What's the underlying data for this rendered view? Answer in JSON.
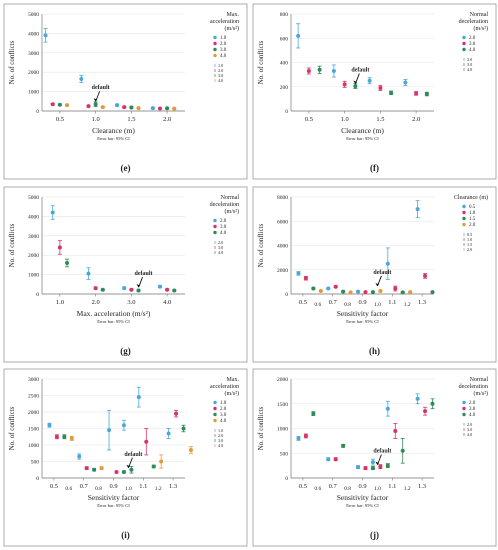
{
  "chart_data": [
    {
      "type": "scatter",
      "panel_label": "(e)",
      "xlabel": "Clearance (m)",
      "ylabel": "No. of conflicts",
      "footnote": "Error bar: 95% CI",
      "xlim": [
        0.25,
        2.25
      ],
      "ylim": [
        0,
        5000
      ],
      "xticks": [
        "0.5",
        "1.0",
        "1.5",
        "2.0"
      ],
      "xtick_values": [
        0.5,
        1.0,
        1.5,
        2.0
      ],
      "yticks": [
        "0",
        "1000",
        "2000",
        "3000",
        "4000",
        "5000"
      ],
      "ytick_values": [
        0,
        1000,
        2000,
        3000,
        4000,
        5000
      ],
      "legend_title": "Max. acceleration (m/s²)",
      "legend_placement": "top-right",
      "annotation": {
        "text": "default",
        "x": 1.0,
        "y": 400
      },
      "series": [
        {
          "name": "1.0",
          "color": "#4aa8d8",
          "points": [
            [
              0.3,
              3900,
              350
            ],
            [
              0.8,
              1650,
              180
            ],
            [
              1.3,
              300,
              60
            ],
            [
              1.8,
              150,
              40
            ]
          ]
        },
        {
          "name": "2.0",
          "color": "#d6336c",
          "points": [
            [
              0.4,
              350,
              40
            ],
            [
              0.9,
              250,
              40
            ],
            [
              1.4,
              200,
              40
            ],
            [
              1.9,
              130,
              30
            ]
          ]
        },
        {
          "name": "3.0",
          "color": "#2e8b57",
          "points": [
            [
              0.5,
              320,
              40
            ],
            [
              1.0,
              350,
              120
            ],
            [
              1.5,
              180,
              40
            ],
            [
              2.0,
              140,
              30
            ]
          ]
        },
        {
          "name": "4.0",
          "color": "#e39b3a",
          "points": [
            [
              0.6,
              300,
              40
            ],
            [
              1.1,
              200,
              40
            ],
            [
              1.6,
              150,
              30
            ],
            [
              2.1,
              120,
              30
            ]
          ]
        }
      ]
    },
    {
      "type": "scatter",
      "panel_label": "(f)",
      "xlabel": "Clearance (m)",
      "ylabel": "No. of conflicts",
      "footnote": "Error bar: 95% CI",
      "xlim": [
        0.25,
        2.25
      ],
      "ylim": [
        0,
        800
      ],
      "xticks": [
        "0.5",
        "1.0",
        "1.5",
        "2.0"
      ],
      "xtick_values": [
        0.5,
        1.0,
        1.5,
        2.0
      ],
      "yticks": [
        "0",
        "200",
        "400",
        "600",
        "800"
      ],
      "ytick_values": [
        0,
        200,
        400,
        600,
        800
      ],
      "legend_title": "Normal deceleration (m/s²)",
      "legend_placement": "top-right",
      "annotation": {
        "text": "default",
        "x": 1.15,
        "y": 210
      },
      "series": [
        {
          "name": "2.0",
          "color": "#4aa8d8",
          "points": [
            [
              0.35,
              620,
              100
            ],
            [
              0.85,
              330,
              50
            ],
            [
              1.35,
              250,
              25
            ],
            [
              1.85,
              235,
              25
            ]
          ]
        },
        {
          "name": "3.0",
          "color": "#d6336c",
          "points": [
            [
              0.5,
              330,
              25
            ],
            [
              1.0,
              220,
              25
            ],
            [
              1.5,
              190,
              20
            ],
            [
              2.0,
              145,
              15
            ]
          ]
        },
        {
          "name": "4.0",
          "color": "#2e8b57",
          "points": [
            [
              0.65,
              340,
              30
            ],
            [
              1.15,
              205,
              20
            ],
            [
              1.65,
              150,
              15
            ],
            [
              2.15,
              140,
              15
            ]
          ]
        }
      ]
    },
    {
      "type": "scatter",
      "panel_label": "(g)",
      "xlabel": "Max. acceleration  (m/s²)",
      "ylabel": "No. of conflicts",
      "footnote": "Error bar: 95% CI",
      "xlim": [
        0.5,
        4.5
      ],
      "ylim": [
        0,
        5000
      ],
      "xticks": [
        "1.0",
        "2.0",
        "3.0",
        "4.0"
      ],
      "xtick_values": [
        1.0,
        2.0,
        3.0,
        4.0
      ],
      "yticks": [
        "0",
        "1000",
        "2000",
        "3000",
        "4000",
        "5000"
      ],
      "ytick_values": [
        0,
        1000,
        2000,
        3000,
        4000,
        5000
      ],
      "legend_title": "Normal deceleration (m/s²)",
      "legend_placement": "top-right",
      "annotation": {
        "text": "default",
        "x": 3.2,
        "y": 250
      },
      "series": [
        {
          "name": "2.0",
          "color": "#4aa8d8",
          "points": [
            [
              0.8,
              4200,
              350
            ],
            [
              1.8,
              1050,
              300
            ],
            [
              2.8,
              300,
              60
            ],
            [
              3.8,
              380,
              60
            ]
          ]
        },
        {
          "name": "3.0",
          "color": "#d6336c",
          "points": [
            [
              1.0,
              2400,
              350
            ],
            [
              2.0,
              300,
              60
            ],
            [
              3.0,
              220,
              40
            ],
            [
              4.0,
              220,
              40
            ]
          ]
        },
        {
          "name": "4.0",
          "color": "#2e8b57",
          "points": [
            [
              1.2,
              1600,
              200
            ],
            [
              2.2,
              220,
              40
            ],
            [
              3.2,
              180,
              40
            ],
            [
              4.2,
              180,
              40
            ]
          ]
        }
      ]
    },
    {
      "type": "scatter",
      "panel_label": "(h)",
      "xlabel": "Sensitivity factor",
      "ylabel": "No. of conflicts",
      "footnote": "Error bar: 95% CI",
      "xlim": [
        0.42,
        1.38
      ],
      "ylim": [
        0,
        8000
      ],
      "xticks": [
        "0.5",
        "0.7",
        "0.9",
        "1.1",
        "1.3"
      ],
      "xtick_values": [
        0.5,
        0.7,
        0.9,
        1.1,
        1.3
      ],
      "minor_xticks": [
        "0.6",
        "0.8",
        "1.0",
        "1.2"
      ],
      "minor_xtick_values": [
        0.6,
        0.8,
        1.0,
        1.2
      ],
      "yticks": [
        "0",
        "2000",
        "4000",
        "6000",
        "8000"
      ],
      "ytick_values": [
        0,
        2000,
        4000,
        6000,
        8000
      ],
      "legend_title": "Clearance (m)",
      "legend_placement": "top-right",
      "annotation": {
        "text": "default",
        "x": 1.0,
        "y": 500
      },
      "series": [
        {
          "name": "0.5",
          "color": "#4aa8d8",
          "points": [
            [
              0.47,
              1700,
              150
            ],
            [
              0.67,
              450,
              60
            ],
            [
              0.87,
              200,
              40
            ],
            [
              1.07,
              2500,
              1300
            ],
            [
              1.27,
              7000,
              700
            ]
          ]
        },
        {
          "name": "1.0",
          "color": "#d6336c",
          "points": [
            [
              0.52,
              1300,
              150
            ],
            [
              0.72,
              600,
              80
            ],
            [
              0.92,
              150,
              30
            ],
            [
              1.12,
              450,
              200
            ],
            [
              1.32,
              1500,
              200
            ]
          ]
        },
        {
          "name": "1.5",
          "color": "#2e8b57",
          "points": [
            [
              0.57,
              450,
              60
            ],
            [
              0.77,
              200,
              40
            ],
            [
              0.97,
              150,
              30
            ],
            [
              1.17,
              130,
              30
            ],
            [
              1.37,
              150,
              30
            ]
          ]
        },
        {
          "name": "2.0",
          "color": "#e39b3a",
          "points": [
            [
              0.62,
              250,
              40
            ],
            [
              0.82,
              130,
              30
            ],
            [
              1.02,
              250,
              80
            ],
            [
              1.22,
              150,
              30
            ]
          ]
        }
      ]
    },
    {
      "type": "scatter",
      "panel_label": "(i)",
      "xlabel": "Sensitivity factor",
      "ylabel": "No. of conflicts",
      "footnote": "Error bar: 95% CI",
      "xlim": [
        0.42,
        1.38
      ],
      "ylim": [
        0,
        3000
      ],
      "xticks": [
        "0.5",
        "0.7",
        "0.9",
        "1.1",
        "1.3"
      ],
      "xtick_values": [
        0.5,
        0.7,
        0.9,
        1.1,
        1.3
      ],
      "minor_xticks": [
        "0.6",
        "0.8",
        "1.0",
        "1.2"
      ],
      "minor_xtick_values": [
        0.6,
        0.8,
        1.0,
        1.2
      ],
      "yticks": [
        "0",
        "500",
        "1000",
        "1500",
        "2000",
        "2500",
        "3000"
      ],
      "ytick_values": [
        0,
        500,
        1000,
        1500,
        2000,
        2500,
        3000
      ],
      "legend_title": "Max. acceleration (m/s²)",
      "legend_placement": "top-right",
      "annotation": {
        "text": "default",
        "x": 1.0,
        "y": 250
      },
      "series": [
        {
          "name": "1.0",
          "color": "#4aa8d8",
          "points": [
            [
              0.47,
              1600,
              60
            ],
            [
              0.67,
              650,
              80
            ],
            [
              0.87,
              1450,
              600
            ],
            [
              0.97,
              1600,
              150
            ],
            [
              1.07,
              2450,
              300
            ],
            [
              1.27,
              1350,
              150
            ]
          ]
        },
        {
          "name": "2.0",
          "color": "#d6336c",
          "points": [
            [
              0.52,
              1250,
              60
            ],
            [
              0.72,
              300,
              40
            ],
            [
              0.92,
              180,
              30
            ],
            [
              1.12,
              1100,
              400
            ],
            [
              1.32,
              1950,
              100
            ]
          ]
        },
        {
          "name": "3.0",
          "color": "#2e8b57",
          "points": [
            [
              0.57,
              1250,
              60
            ],
            [
              0.77,
              250,
              40
            ],
            [
              0.97,
              180,
              30
            ],
            [
              1.02,
              250,
              100
            ],
            [
              1.17,
              350,
              40
            ],
            [
              1.37,
              1500,
              100
            ]
          ]
        },
        {
          "name": "4.0",
          "color": "#e39b3a",
          "points": [
            [
              0.62,
              1200,
              60
            ],
            [
              0.82,
              300,
              40
            ],
            [
              1.22,
              500,
              200
            ],
            [
              1.42,
              850,
              100
            ]
          ]
        }
      ]
    },
    {
      "type": "scatter",
      "panel_label": "(j)",
      "xlabel": "Sensitivity factor",
      "ylabel": "No. of conflicts",
      "footnote": "Error bar: 95% CI",
      "xlim": [
        0.42,
        1.38
      ],
      "ylim": [
        0,
        2000
      ],
      "xticks": [
        "0.5",
        "0.7",
        "0.9",
        "1.1",
        "1.3"
      ],
      "xtick_values": [
        0.5,
        0.7,
        0.9,
        1.1,
        1.3
      ],
      "minor_xticks": [
        "0.6",
        "0.8",
        "1.0",
        "1.2"
      ],
      "minor_xtick_values": [
        0.6,
        0.8,
        1.0,
        1.2
      ],
      "yticks": [
        "0",
        "500",
        "1000",
        "1500",
        "2000"
      ],
      "ytick_values": [
        0,
        500,
        1000,
        1500,
        2000
      ],
      "legend_title": "Normal deceleration (m/s²)",
      "legend_placement": "top-right",
      "annotation": {
        "text": "default",
        "x": 1.0,
        "y": 230
      },
      "series": [
        {
          "name": "2.0",
          "color": "#4aa8d8",
          "points": [
            [
              0.47,
              800,
              40
            ],
            [
              0.67,
              380,
              30
            ],
            [
              0.87,
              220,
              30
            ],
            [
              0.97,
              320,
              60
            ],
            [
              1.07,
              1400,
              150
            ],
            [
              1.27,
              1600,
              100
            ]
          ]
        },
        {
          "name": "3.0",
          "color": "#d6336c",
          "points": [
            [
              0.52,
              850,
              40
            ],
            [
              0.72,
              380,
              30
            ],
            [
              0.92,
              200,
              30
            ],
            [
              1.02,
              230,
              40
            ],
            [
              1.12,
              950,
              150
            ],
            [
              1.32,
              1350,
              80
            ]
          ]
        },
        {
          "name": "4.0",
          "color": "#2e8b57",
          "points": [
            [
              0.57,
              1300,
              40
            ],
            [
              0.77,
              650,
              30
            ],
            [
              0.97,
              200,
              30
            ],
            [
              1.07,
              250,
              40
            ],
            [
              1.17,
              550,
              250
            ],
            [
              1.37,
              1500,
              100
            ]
          ]
        }
      ]
    }
  ]
}
